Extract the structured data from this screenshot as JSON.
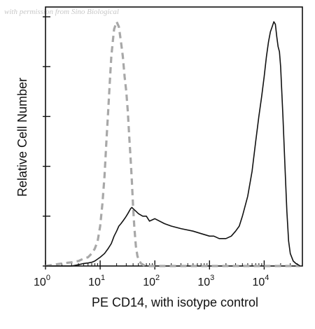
{
  "watermark": "with permission from Sino Biological",
  "chart_data": {
    "type": "line",
    "title": "",
    "xlabel": "PE CD14, with isotype control",
    "ylabel": "Relative Cell Number",
    "xscale": "log",
    "xlim": [
      1,
      50000
    ],
    "ylim": [
      0,
      1.0
    ],
    "xticks": [
      {
        "value": 1,
        "base": "10",
        "exp": "0"
      },
      {
        "value": 10,
        "base": "10",
        "exp": "1"
      },
      {
        "value": 100,
        "base": "10",
        "exp": "2"
      },
      {
        "value": 1000,
        "base": "10",
        "exp": "3"
      },
      {
        "value": 10000,
        "base": "10",
        "exp": "4"
      }
    ],
    "yticks": [
      0,
      0.2,
      0.4,
      0.6,
      0.8,
      1.0
    ],
    "yticklabels_visible": false,
    "grid": false,
    "legend": "none",
    "series": [
      {
        "style": "dashed",
        "color": "#a8a8a8",
        "x": [
          1,
          2,
          3,
          4,
          5,
          6,
          7,
          8,
          9,
          10,
          11,
          12,
          13,
          14,
          15,
          16,
          17,
          18,
          20,
          22,
          24,
          26,
          28,
          30,
          32,
          34,
          36,
          38,
          40,
          42,
          45,
          48,
          52,
          56,
          60,
          70,
          80,
          100,
          150,
          300,
          1000,
          10000,
          45000
        ],
        "y": [
          0.0,
          0.01,
          0.015,
          0.02,
          0.03,
          0.035,
          0.05,
          0.07,
          0.1,
          0.16,
          0.25,
          0.36,
          0.5,
          0.62,
          0.74,
          0.84,
          0.9,
          0.95,
          0.98,
          0.96,
          0.9,
          0.84,
          0.76,
          0.7,
          0.62,
          0.52,
          0.43,
          0.34,
          0.24,
          0.16,
          0.08,
          0.04,
          0.02,
          0.01,
          0.005,
          0.0,
          0.0,
          0.0,
          0.0,
          0.0,
          0.0,
          0.0,
          0.0
        ]
      },
      {
        "style": "solid",
        "color": "#111111",
        "x": [
          1,
          2,
          3,
          4,
          5,
          6,
          7,
          8,
          10,
          12,
          14,
          16,
          18,
          20,
          22,
          24,
          26,
          28,
          30,
          32,
          34,
          36,
          38,
          40,
          45,
          50,
          60,
          70,
          80,
          100,
          150,
          200,
          300,
          500,
          700,
          1000,
          1200,
          1500,
          2000,
          2500,
          3000,
          3500,
          4000,
          5000,
          6000,
          7000,
          8000,
          9000,
          10000,
          11000,
          12000,
          13000,
          14000,
          15000,
          16000,
          17000,
          18000,
          19000,
          20000,
          22000,
          24000,
          26000,
          28000,
          30000,
          34000,
          38000,
          42000,
          45000
        ],
        "y": [
          0.0,
          0.0,
          0.0,
          0.005,
          0.01,
          0.012,
          0.015,
          0.02,
          0.035,
          0.05,
          0.07,
          0.09,
          0.12,
          0.14,
          0.16,
          0.17,
          0.18,
          0.19,
          0.2,
          0.21,
          0.22,
          0.23,
          0.235,
          0.23,
          0.22,
          0.21,
          0.2,
          0.2,
          0.18,
          0.19,
          0.17,
          0.16,
          0.15,
          0.14,
          0.13,
          0.12,
          0.12,
          0.11,
          0.11,
          0.12,
          0.14,
          0.16,
          0.2,
          0.28,
          0.38,
          0.5,
          0.6,
          0.68,
          0.76,
          0.84,
          0.9,
          0.94,
          0.96,
          0.98,
          0.97,
          0.92,
          0.88,
          0.86,
          0.8,
          0.6,
          0.4,
          0.22,
          0.1,
          0.05,
          0.02,
          0.01,
          0.005,
          0.0
        ]
      }
    ]
  }
}
